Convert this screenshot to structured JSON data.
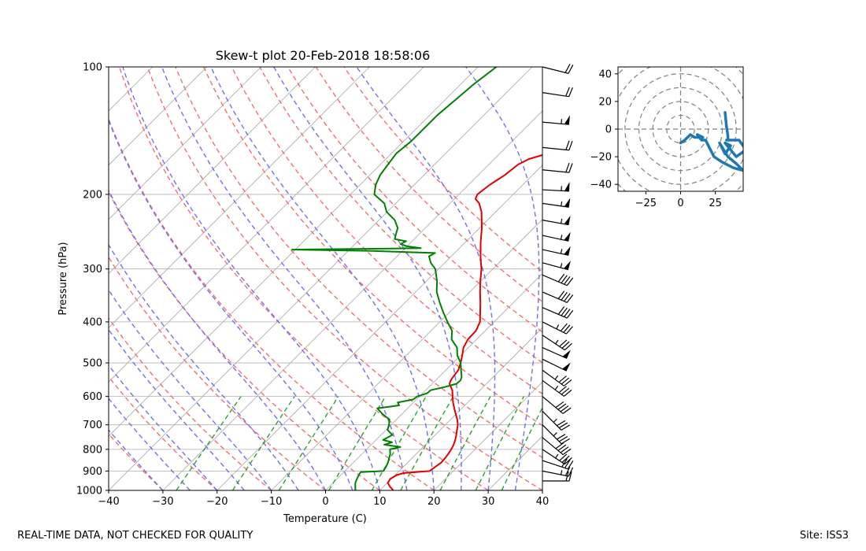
{
  "footer": {
    "quality_note": "REAL-TIME DATA, NOT CHECKED FOR QUALITY",
    "site": "Site: ISS3"
  },
  "chart_data": [
    {
      "type": "line",
      "title": "Skew-t plot 20-Feb-2018 18:58:06",
      "xlabel": "Temperature (C)",
      "ylabel": "Pressure (hPa)",
      "xlim": [
        -40,
        40
      ],
      "ylim": [
        1000,
        100
      ],
      "y_scale": "log",
      "x_ticks": [
        -40,
        -30,
        -20,
        -10,
        0,
        10,
        20,
        30,
        40
      ],
      "y_ticks": [
        100,
        200,
        300,
        400,
        500,
        600,
        700,
        800,
        900,
        1000
      ],
      "grid": true,
      "colors": {
        "temperature": "#e00000",
        "dewpoint": "#008000",
        "dry_adiabats": "#f07070",
        "moist_adiabats": "#7070ee",
        "mixing_ratio": "#30a030",
        "isotherms": "#a8a8a8",
        "gridlines": "#b0b0b0",
        "wind_barbs": "#000000"
      },
      "series": [
        {
          "key": "temperature",
          "pressure": [
            1000,
            980,
            960,
            940,
            920,
            910,
            900,
            880,
            860,
            840,
            820,
            800,
            780,
            760,
            740,
            720,
            700,
            680,
            660,
            640,
            620,
            600,
            580,
            565,
            560,
            550,
            540,
            520,
            500,
            480,
            460,
            440,
            420,
            400,
            380,
            360,
            340,
            320,
            300,
            280,
            260,
            240,
            220,
            210,
            205,
            200,
            190,
            180,
            170,
            165,
            160,
            155,
            150,
            140,
            130,
            120,
            115,
            110,
            105,
            100
          ],
          "temperature": [
            12.5,
            11.2,
            10.1,
            9.8,
            10.3,
            11.2,
            15.6,
            15.9,
            16.2,
            16.1,
            15.9,
            15.6,
            15.2,
            14.6,
            13.9,
            13.1,
            12.3,
            11.2,
            9.9,
            8.6,
            7.3,
            6.1,
            4.9,
            3.6,
            3.2,
            2.8,
            2.6,
            2.3,
            1.4,
            0.3,
            -0.9,
            -1.6,
            -1.7,
            -2.6,
            -4.3,
            -6.1,
            -8.1,
            -10.1,
            -12.1,
            -14.6,
            -17.1,
            -19.6,
            -22.6,
            -24.6,
            -26.1,
            -26.6,
            -26.1,
            -25.1,
            -24.6,
            -23.6,
            -21.1,
            -18.6,
            -16.6,
            -15.1,
            -13.1,
            -11.6,
            -10.1,
            -9.6,
            -8.1,
            -6.6
          ]
        },
        {
          "key": "dewpoint",
          "pressure": [
            1000,
            980,
            960,
            940,
            920,
            905,
            900,
            880,
            860,
            840,
            820,
            800,
            790,
            780,
            770,
            760,
            740,
            720,
            700,
            680,
            660,
            640,
            630,
            620,
            610,
            600,
            590,
            580,
            570,
            565,
            560,
            550,
            540,
            520,
            500,
            480,
            460,
            440,
            420,
            400,
            380,
            360,
            340,
            320,
            300,
            290,
            280,
            275,
            272,
            270,
            268,
            265,
            262,
            258,
            255,
            250,
            245,
            240,
            230,
            220,
            210,
            200,
            190,
            180,
            170,
            160,
            150,
            140,
            130,
            120,
            110,
            100
          ],
          "dewpoint": [
            5.5,
            4.8,
            4.1,
            3.7,
            3.3,
            3.1,
            7.1,
            6.8,
            6.4,
            5.8,
            5.2,
            4.3,
            5.8,
            2.4,
            3.4,
            1.3,
            2.1,
            0.3,
            -0.4,
            -1.3,
            -3.6,
            -5.6,
            -2.1,
            -2.9,
            -0.6,
            -0.4,
            0.8,
            0.9,
            2.9,
            3.7,
            4.5,
            4.6,
            4.2,
            2.8,
            1.4,
            -0.6,
            -2.1,
            -4.6,
            -6.1,
            -8.6,
            -11.1,
            -13.6,
            -16.1,
            -18.1,
            -20.6,
            -22.6,
            -24.1,
            -23.6,
            -35.6,
            -50.6,
            -27.1,
            -30.1,
            -31.6,
            -31.1,
            -33.6,
            -34.1,
            -34.6,
            -35.1,
            -37.1,
            -40.1,
            -42.1,
            -45.6,
            -47.1,
            -48.1,
            -48.6,
            -49.1,
            -48.6,
            -48.6,
            -48.6,
            -48.1,
            -47.6,
            -46.6
          ]
        }
      ],
      "wind_barbs": [
        {
          "p": 100,
          "u": -20,
          "v": 5
        },
        {
          "p": 115,
          "u": -20,
          "v": 3
        },
        {
          "p": 135,
          "u": -55,
          "v": 5
        },
        {
          "p": 155,
          "u": -20,
          "v": 2
        },
        {
          "p": 175,
          "u": -20,
          "v": 2
        },
        {
          "p": 195,
          "u": -55,
          "v": 3
        },
        {
          "p": 210,
          "u": -55,
          "v": 8
        },
        {
          "p": 230,
          "u": -55,
          "v": 10
        },
        {
          "p": 250,
          "u": -55,
          "v": 12
        },
        {
          "p": 270,
          "u": -55,
          "v": 12
        },
        {
          "p": 290,
          "u": -55,
          "v": 15
        },
        {
          "p": 310,
          "u": -35,
          "v": 15
        },
        {
          "p": 340,
          "u": -35,
          "v": 15
        },
        {
          "p": 370,
          "u": -35,
          "v": 15
        },
        {
          "p": 400,
          "u": -30,
          "v": 15
        },
        {
          "p": 430,
          "u": -30,
          "v": 20
        },
        {
          "p": 460,
          "u": -45,
          "v": 20
        },
        {
          "p": 490,
          "u": -45,
          "v": 22
        },
        {
          "p": 520,
          "u": -30,
          "v": 22
        },
        {
          "p": 550,
          "u": -30,
          "v": 22
        },
        {
          "p": 600,
          "u": -30,
          "v": 25
        },
        {
          "p": 650,
          "u": -25,
          "v": 25
        },
        {
          "p": 700,
          "u": -25,
          "v": 25
        },
        {
          "p": 750,
          "u": -30,
          "v": 25
        },
        {
          "p": 800,
          "u": -30,
          "v": 20
        },
        {
          "p": 850,
          "u": -30,
          "v": 10
        },
        {
          "p": 900,
          "u": -25,
          "v": 5
        },
        {
          "p": 950,
          "u": -20,
          "v": 0
        }
      ]
    },
    {
      "type": "line",
      "title": "",
      "xlim": [
        -45,
        45
      ],
      "ylim": [
        -45,
        45
      ],
      "x_ticks": [
        -25,
        0,
        25
      ],
      "y_ticks": [
        -40,
        -20,
        0,
        20,
        40
      ],
      "rings": [
        10,
        20,
        30,
        40,
        50,
        60
      ],
      "grid": true,
      "colors": {
        "trace": "#1f77b4",
        "rings": "#808080"
      },
      "trace_u": [
        32,
        33,
        34,
        34,
        33,
        42,
        47,
        40,
        32,
        36,
        32,
        28,
        34,
        40,
        45,
        38,
        30,
        24,
        20,
        18,
        15,
        12,
        16,
        10,
        7,
        3,
        0
      ],
      "trace_v": [
        12,
        2,
        -5,
        -8,
        -8,
        -8,
        -15,
        -20,
        -10,
        -12,
        -18,
        -10,
        -20,
        -25,
        -30,
        -28,
        -24,
        -20,
        -12,
        -8,
        -8,
        -4,
        -6,
        -6,
        -4,
        -8,
        -10
      ]
    }
  ]
}
